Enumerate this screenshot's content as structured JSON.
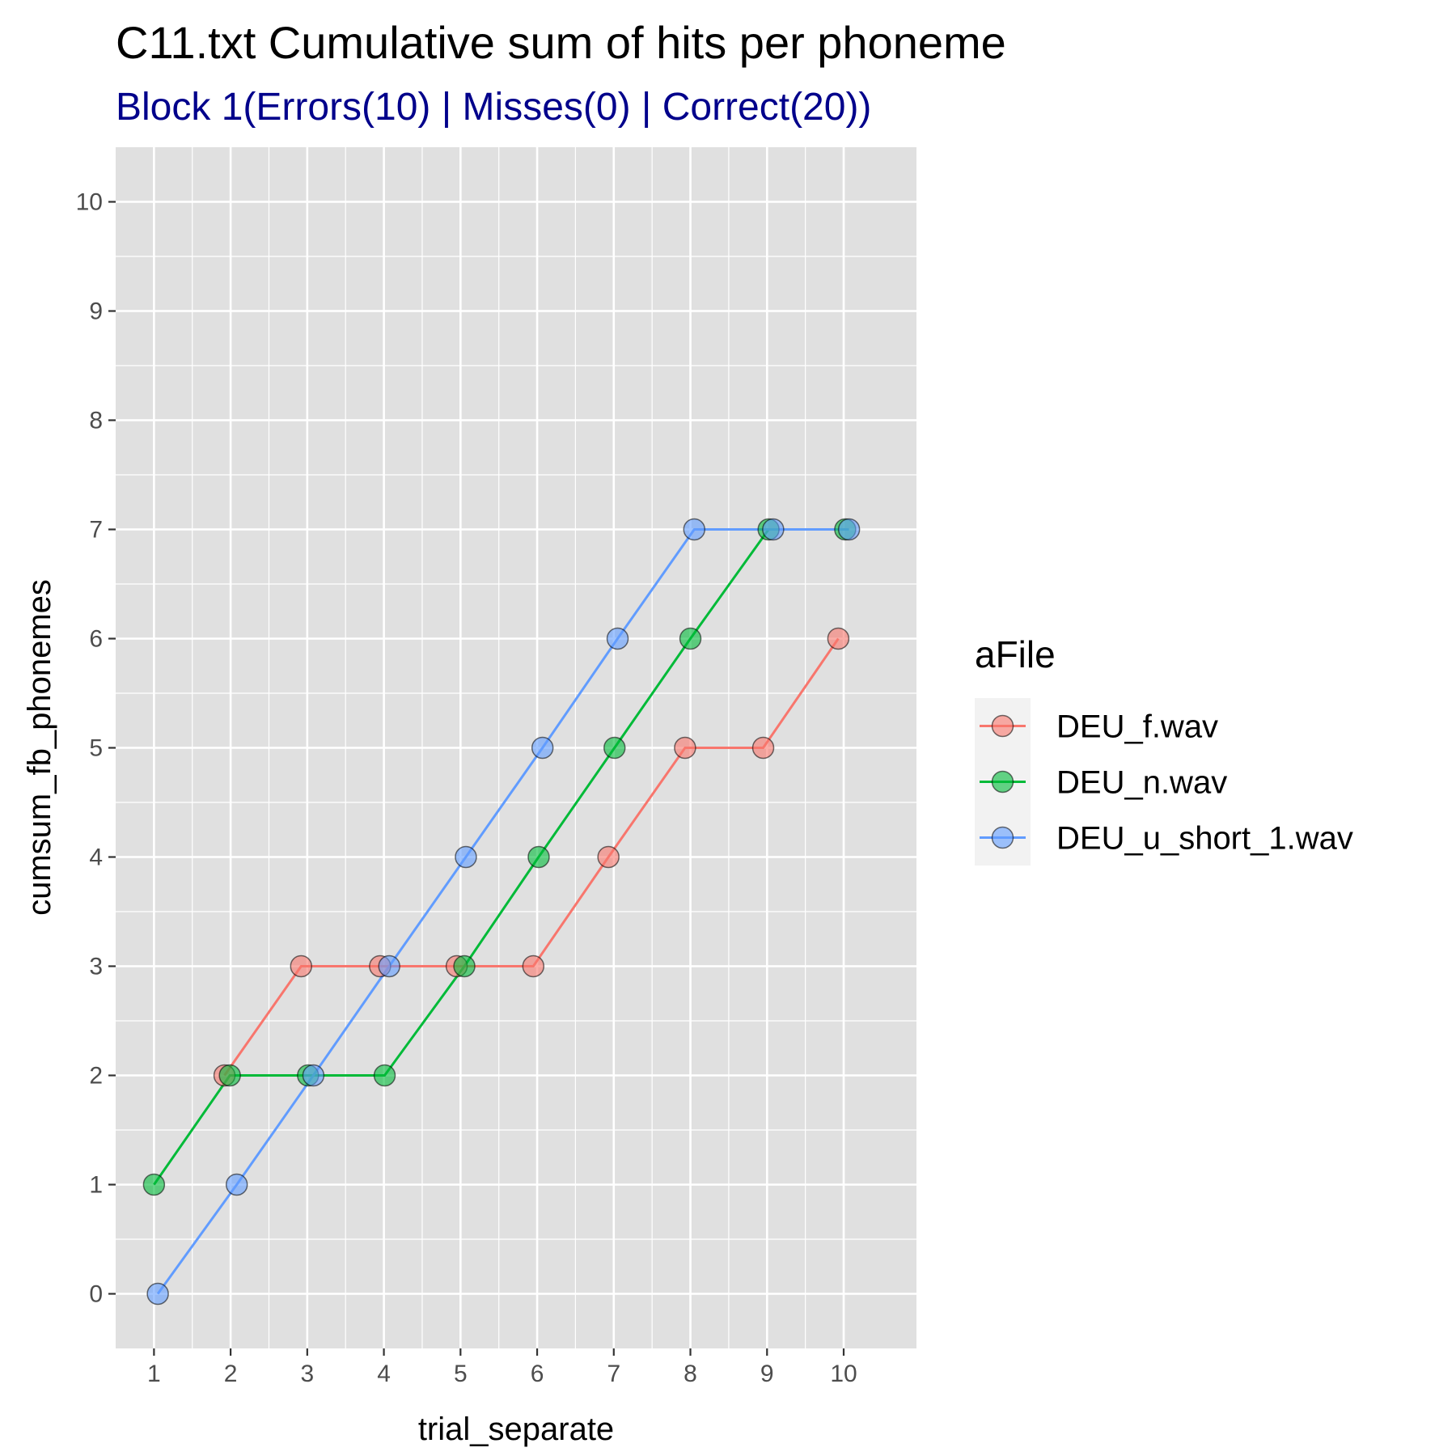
{
  "chart_data": {
    "type": "line",
    "title": "C11.txt Cumulative sum of hits per phoneme",
    "subtitle": "Block 1(Errors(10) | Misses(0) | Correct(20))",
    "subtitle_color": "#00008B",
    "xlabel": "trial_separate",
    "ylabel": "cumsum_fb_phonemes",
    "x_ticks": [
      "1",
      "2",
      "3",
      "4",
      "5",
      "6",
      "7",
      "8",
      "9",
      "10"
    ],
    "y_ticks": [
      "0",
      "1",
      "2",
      "3",
      "4",
      "5",
      "6",
      "7",
      "8",
      "9",
      "10"
    ],
    "xlim": [
      0.5,
      10.95
    ],
    "ylim": [
      -0.5,
      10.5
    ],
    "grid": true,
    "panel_background": "#E0E0E0",
    "legend_title": "aFile",
    "legend_position": "right",
    "x": [
      1,
      2,
      3,
      4,
      5,
      6,
      7,
      8,
      9,
      10
    ],
    "series": [
      {
        "name": "DEU_f.wav",
        "color": "#F8766D",
        "values": [
          null,
          2,
          3,
          3,
          3,
          3,
          4,
          5,
          5,
          6
        ]
      },
      {
        "name": "DEU_n.wav",
        "color": "#00BA38",
        "values": [
          1,
          2,
          2,
          2,
          3,
          4,
          5,
          6,
          7,
          7
        ]
      },
      {
        "name": "DEU_u_short_1.wav",
        "color": "#619CFF",
        "values": [
          0,
          1,
          2,
          3,
          4,
          5,
          6,
          7,
          7,
          7
        ]
      }
    ]
  }
}
